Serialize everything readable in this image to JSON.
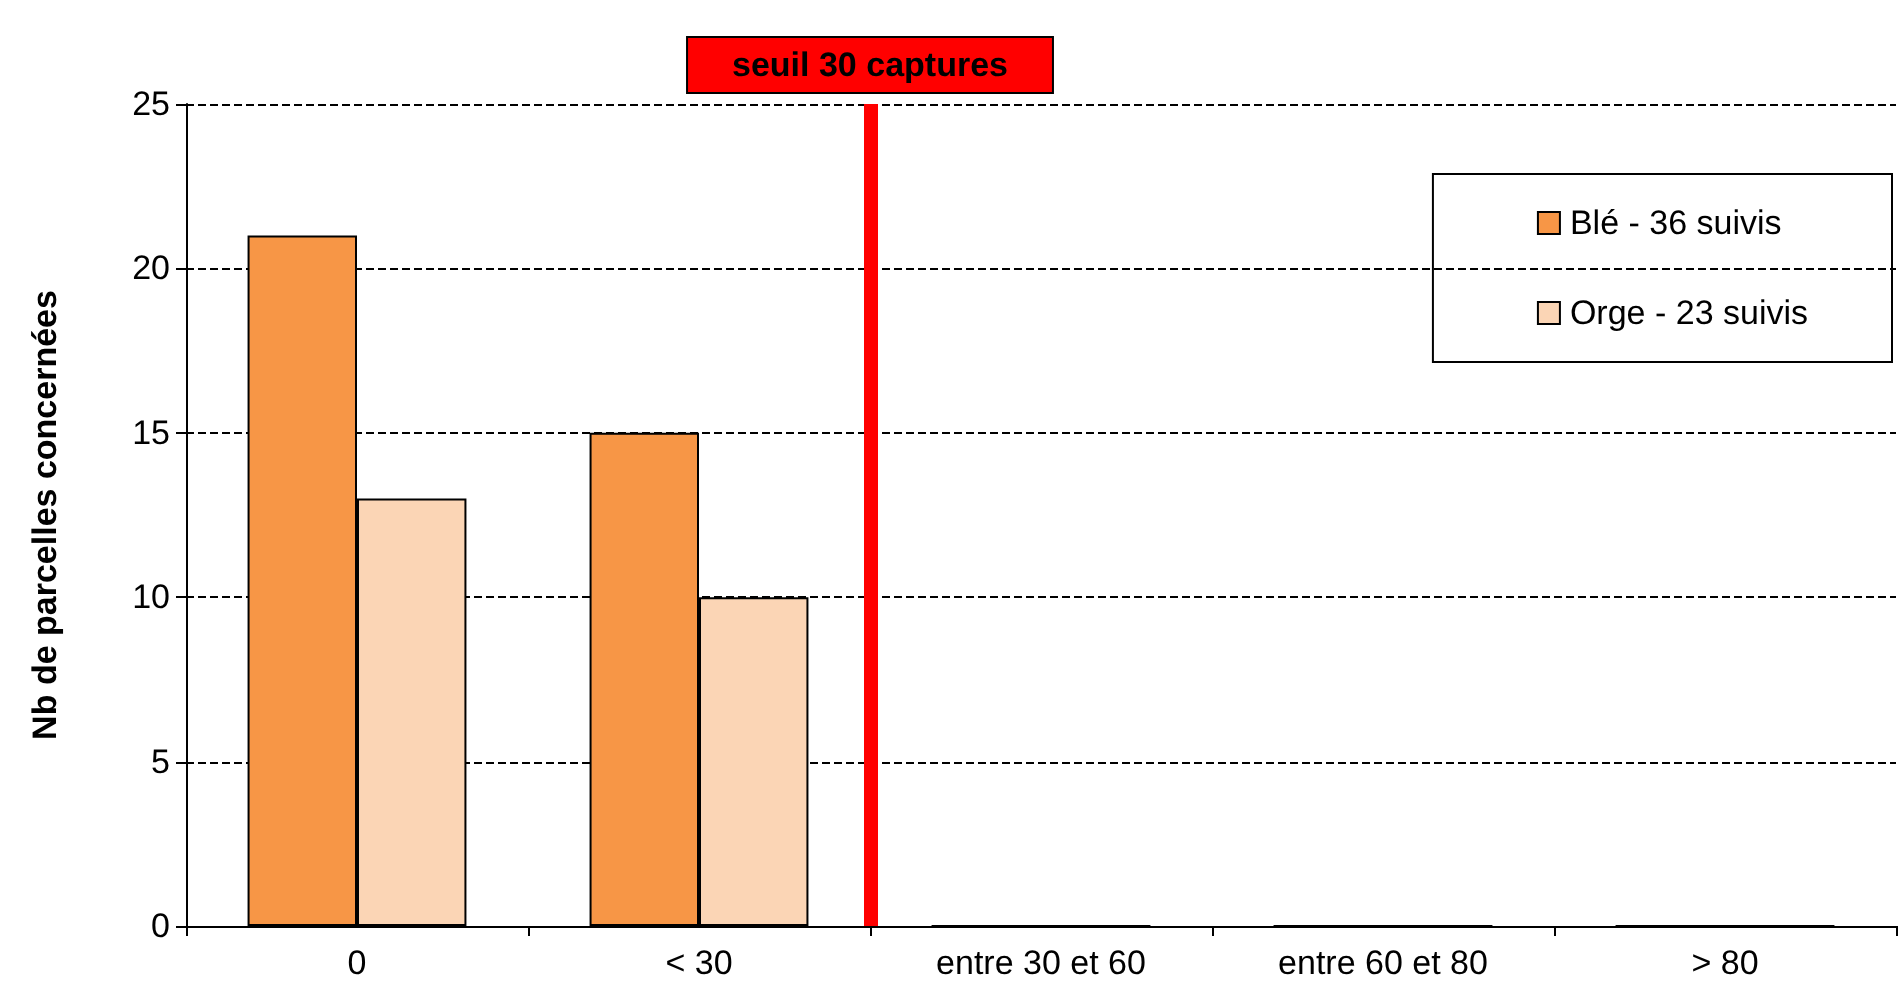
{
  "chart_data": {
    "type": "bar",
    "ylabel": "Nb de parcelles concernées",
    "categories": [
      "0",
      "< 30",
      "entre 30 et 60",
      "entre 60 et 80",
      "> 80"
    ],
    "series": [
      {
        "name": "Blé - 36 suivis",
        "color": "#f79646",
        "values": [
          21,
          15,
          0,
          0,
          0
        ]
      },
      {
        "name": "Orge - 23 suivis",
        "color": "#fbd5b5",
        "values": [
          13,
          10,
          0,
          0,
          0
        ]
      }
    ],
    "ylim": [
      0,
      25
    ],
    "yticks": [
      0,
      5,
      10,
      15,
      20,
      25
    ],
    "grid": "y",
    "legend": "top right",
    "ref_lines": [
      {
        "axis": "x",
        "value": "entre 30 et 60",
        "label": "seuil 30 captures",
        "color": "#ff0000"
      }
    ]
  }
}
